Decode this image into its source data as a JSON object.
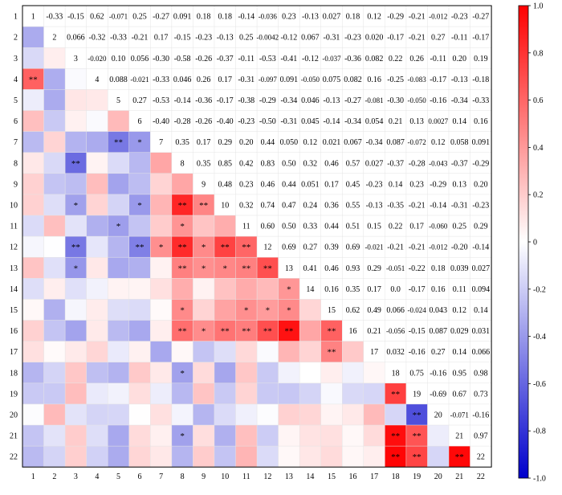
{
  "chart_data": {
    "type": "heatmap",
    "title": "",
    "xlabel": "",
    "ylabel": "",
    "labels": [
      "1",
      "2",
      "3",
      "4",
      "5",
      "6",
      "7",
      "8",
      "9",
      "10",
      "11",
      "12",
      "13",
      "14",
      "15",
      "16",
      "17",
      "18",
      "19",
      "20",
      "21",
      "22"
    ],
    "upper_values": [
      [
        "",
        "-0.33",
        "-0.15",
        "0.62",
        "-0.071",
        "0.25",
        "-0.27",
        "0.091",
        "0.18",
        "0.18",
        "-0.14",
        "-0.036",
        "0.23",
        "-0.13",
        "0.027",
        "0.18",
        "0.12",
        "-0.29",
        "-0.21",
        "-0.012",
        "-0.23",
        "-0.27"
      ],
      [
        "",
        "",
        "0.066",
        "-0.32",
        "-0.33",
        "-0.21",
        "0.17",
        "-0.15",
        "-0.23",
        "-0.13",
        "0.25",
        "-0.0042",
        "-0.12",
        "0.067",
        "-0.31",
        "-0.23",
        "0.020",
        "-0.17",
        "-0.21",
        "0.27",
        "-0.11",
        "-0.17"
      ],
      [
        "",
        "",
        "",
        "-0.020",
        "0.10",
        "0.056",
        "-0.30",
        "-0.58",
        "-0.26",
        "-0.37",
        "-0.11",
        "-0.53",
        "-0.41",
        "-0.12",
        "-0.037",
        "-0.36",
        "0.082",
        "0.22",
        "0.26",
        "-0.11",
        "0.20",
        "0.19"
      ],
      [
        "",
        "",
        "",
        "",
        "0.088",
        "-0.021",
        "-0.33",
        "0.046",
        "0.26",
        "0.17",
        "-0.31",
        "-0.097",
        "0.091",
        "-0.050",
        "0.075",
        "0.082",
        "0.16",
        "-0.25",
        "-0.083",
        "-0.17",
        "-0.13",
        "-0.18"
      ],
      [
        "",
        "",
        "",
        "",
        "",
        "0.27",
        "-0.53",
        "-0.14",
        "-0.36",
        "-0.17",
        "-0.38",
        "-0.29",
        "-0.34",
        "0.046",
        "-0.13",
        "-0.27",
        "-0.081",
        "-0.30",
        "-0.050",
        "-0.16",
        "-0.34",
        "-0.33"
      ],
      [
        "",
        "",
        "",
        "",
        "",
        "",
        "-0.40",
        "-0.28",
        "-0.26",
        "-0.40",
        "-0.23",
        "-0.50",
        "-0.31",
        "0.045",
        "-0.14",
        "-0.34",
        "0.054",
        "0.21",
        "0.13",
        "0.0027",
        "0.14",
        "0.16"
      ],
      [
        "",
        "",
        "",
        "",
        "",
        "",
        "",
        "0.35",
        "0.17",
        "0.29",
        "0.20",
        "0.44",
        "0.050",
        "0.12",
        "0.021",
        "0.067",
        "-0.34",
        "0.087",
        "-0.072",
        "0.12",
        "0.058",
        "0.091"
      ],
      [
        "",
        "",
        "",
        "",
        "",
        "",
        "",
        "",
        "0.35",
        "0.85",
        "0.42",
        "0.83",
        "0.50",
        "0.32",
        "0.46",
        "0.57",
        "0.027",
        "-0.37",
        "-0.28",
        "-0.043",
        "-0.37",
        "-0.29"
      ],
      [
        "",
        "",
        "",
        "",
        "",
        "",
        "",
        "",
        "",
        "0.48",
        "0.23",
        "0.46",
        "0.44",
        "0.051",
        "0.17",
        "0.45",
        "-0.23",
        "0.14",
        "0.23",
        "-0.29",
        "0.13",
        "0.20"
      ],
      [
        "",
        "",
        "",
        "",
        "",
        "",
        "",
        "",
        "",
        "",
        "0.32",
        "0.74",
        "0.47",
        "0.24",
        "0.36",
        "0.55",
        "-0.13",
        "-0.35",
        "-0.21",
        "-0.14",
        "-0.31",
        "-0.23"
      ],
      [
        "",
        "",
        "",
        "",
        "",
        "",
        "",
        "",
        "",
        "",
        "",
        "0.60",
        "0.50",
        "0.33",
        "0.44",
        "0.51",
        "0.15",
        "0.22",
        "0.17",
        "-0.060",
        "0.25",
        "0.29"
      ],
      [
        "",
        "",
        "",
        "",
        "",
        "",
        "",
        "",
        "",
        "",
        "",
        "",
        "0.69",
        "0.27",
        "0.39",
        "0.69",
        "-0.021",
        "-0.21",
        "-0.21",
        "-0.012",
        "-0.20",
        "-0.14"
      ],
      [
        "",
        "",
        "",
        "",
        "",
        "",
        "",
        "",
        "",
        "",
        "",
        "",
        "",
        "0.41",
        "0.46",
        "0.93",
        "0.29",
        "-0.051",
        "-0.22",
        "0.18",
        "0.039",
        "0.027"
      ],
      [
        "",
        "",
        "",
        "",
        "",
        "",
        "",
        "",
        "",
        "",
        "",
        "",
        "",
        "",
        "0.16",
        "0.35",
        "0.17",
        "0.0",
        "-0.17",
        "0.16",
        "0.11",
        "0.094"
      ],
      [
        "",
        "",
        "",
        "",
        "",
        "",
        "",
        "",
        "",
        "",
        "",
        "",
        "",
        "",
        "",
        "0.62",
        "0.49",
        "0.066",
        "-0.024",
        "0.043",
        "0.12",
        "0.14"
      ],
      [
        "",
        "",
        "",
        "",
        "",
        "",
        "",
        "",
        "",
        "",
        "",
        "",
        "",
        "",
        "",
        "",
        "0.21",
        "-0.056",
        "-0.15",
        "0.087",
        "0.029",
        "0.031"
      ],
      [
        "",
        "",
        "",
        "",
        "",
        "",
        "",
        "",
        "",
        "",
        "",
        "",
        "",
        "",
        "",
        "",
        "",
        "0.032",
        "-0.16",
        "0.27",
        "0.14",
        "0.066"
      ],
      [
        "",
        "",
        "",
        "",
        "",
        "",
        "",
        "",
        "",
        "",
        "",
        "",
        "",
        "",
        "",
        "",
        "",
        "",
        "0.75",
        "-0.16",
        "0.95",
        "0.98"
      ],
      [
        "",
        "",
        "",
        "",
        "",
        "",
        "",
        "",
        "",
        "",
        "",
        "",
        "",
        "",
        "",
        "",
        "",
        "",
        "",
        "-0.69",
        "0.67",
        "0.73"
      ],
      [
        "",
        "",
        "",
        "",
        "",
        "",
        "",
        "",
        "",
        "",
        "",
        "",
        "",
        "",
        "",
        "",
        "",
        "",
        "",
        "",
        "-0.071",
        "-0.16"
      ],
      [
        "",
        "",
        "",
        "",
        "",
        "",
        "",
        "",
        "",
        "",
        "",
        "",
        "",
        "",
        "",
        "",
        "",
        "",
        "",
        "",
        "",
        "0.97"
      ],
      [
        "",
        "",
        "",
        "",
        "",
        "",
        "",
        "",
        "",
        "",
        "",
        "",
        "",
        "",
        "",
        "",
        "",
        "",
        "",
        "",
        "",
        ""
      ]
    ],
    "diagonal": [
      "1",
      "2",
      "3",
      "4",
      "5",
      "6",
      "7",
      "8",
      "9",
      "10",
      "11",
      "12",
      "13",
      "14",
      "15",
      "16",
      "17",
      "18",
      "19",
      "20",
      "21",
      "22"
    ],
    "significance": [
      {
        "row": 4,
        "col": 1,
        "mark": "**"
      },
      {
        "row": 7,
        "col": 5,
        "mark": "**"
      },
      {
        "row": 7,
        "col": 6,
        "mark": "*"
      },
      {
        "row": 8,
        "col": 3,
        "mark": "**"
      },
      {
        "row": 10,
        "col": 3,
        "mark": "*"
      },
      {
        "row": 10,
        "col": 6,
        "mark": "*"
      },
      {
        "row": 10,
        "col": 8,
        "mark": "**"
      },
      {
        "row": 10,
        "col": 9,
        "mark": "**"
      },
      {
        "row": 11,
        "col": 5,
        "mark": "*"
      },
      {
        "row": 11,
        "col": 8,
        "mark": "*"
      },
      {
        "row": 12,
        "col": 3,
        "mark": "**"
      },
      {
        "row": 12,
        "col": 6,
        "mark": "**"
      },
      {
        "row": 12,
        "col": 7,
        "mark": "*"
      },
      {
        "row": 12,
        "col": 8,
        "mark": "**"
      },
      {
        "row": 12,
        "col": 9,
        "mark": "*"
      },
      {
        "row": 12,
        "col": 10,
        "mark": "**"
      },
      {
        "row": 12,
        "col": 11,
        "mark": "**"
      },
      {
        "row": 13,
        "col": 3,
        "mark": "*"
      },
      {
        "row": 13,
        "col": 8,
        "mark": "**"
      },
      {
        "row": 13,
        "col": 9,
        "mark": "*"
      },
      {
        "row": 13,
        "col": 10,
        "mark": "*"
      },
      {
        "row": 13,
        "col": 11,
        "mark": "**"
      },
      {
        "row": 13,
        "col": 12,
        "mark": "**"
      },
      {
        "row": 14,
        "col": 13,
        "mark": "*"
      },
      {
        "row": 15,
        "col": 8,
        "mark": "*"
      },
      {
        "row": 15,
        "col": 11,
        "mark": "*"
      },
      {
        "row": 15,
        "col": 12,
        "mark": "*"
      },
      {
        "row": 15,
        "col": 13,
        "mark": "*"
      },
      {
        "row": 16,
        "col": 8,
        "mark": "**"
      },
      {
        "row": 16,
        "col": 9,
        "mark": "*"
      },
      {
        "row": 16,
        "col": 10,
        "mark": "**"
      },
      {
        "row": 16,
        "col": 11,
        "mark": "**"
      },
      {
        "row": 16,
        "col": 12,
        "mark": "**"
      },
      {
        "row": 16,
        "col": 13,
        "mark": "**"
      },
      {
        "row": 16,
        "col": 15,
        "mark": "**"
      },
      {
        "row": 17,
        "col": 15,
        "mark": "**"
      },
      {
        "row": 18,
        "col": 8,
        "mark": "*"
      },
      {
        "row": 19,
        "col": 18,
        "mark": "**"
      },
      {
        "row": 20,
        "col": 19,
        "mark": "**"
      },
      {
        "row": 21,
        "col": 8,
        "mark": "*"
      },
      {
        "row": 21,
        "col": 18,
        "mark": "**"
      },
      {
        "row": 21,
        "col": 19,
        "mark": "**"
      },
      {
        "row": 22,
        "col": 18,
        "mark": "**"
      },
      {
        "row": 22,
        "col": 19,
        "mark": "**"
      },
      {
        "row": 22,
        "col": 21,
        "mark": "**"
      }
    ],
    "colorbar": {
      "range": [
        -1.0,
        1.0
      ],
      "ticks": [
        "-1.0",
        "-0.8",
        "-0.6",
        "-0.4",
        "-0.2",
        "0",
        "0.2",
        "0.4",
        "0.6",
        "0.8",
        "1.0"
      ],
      "colors": {
        "neg": "#0000cc",
        "mid": "#ffffff",
        "pos": "#ff0000"
      }
    }
  }
}
